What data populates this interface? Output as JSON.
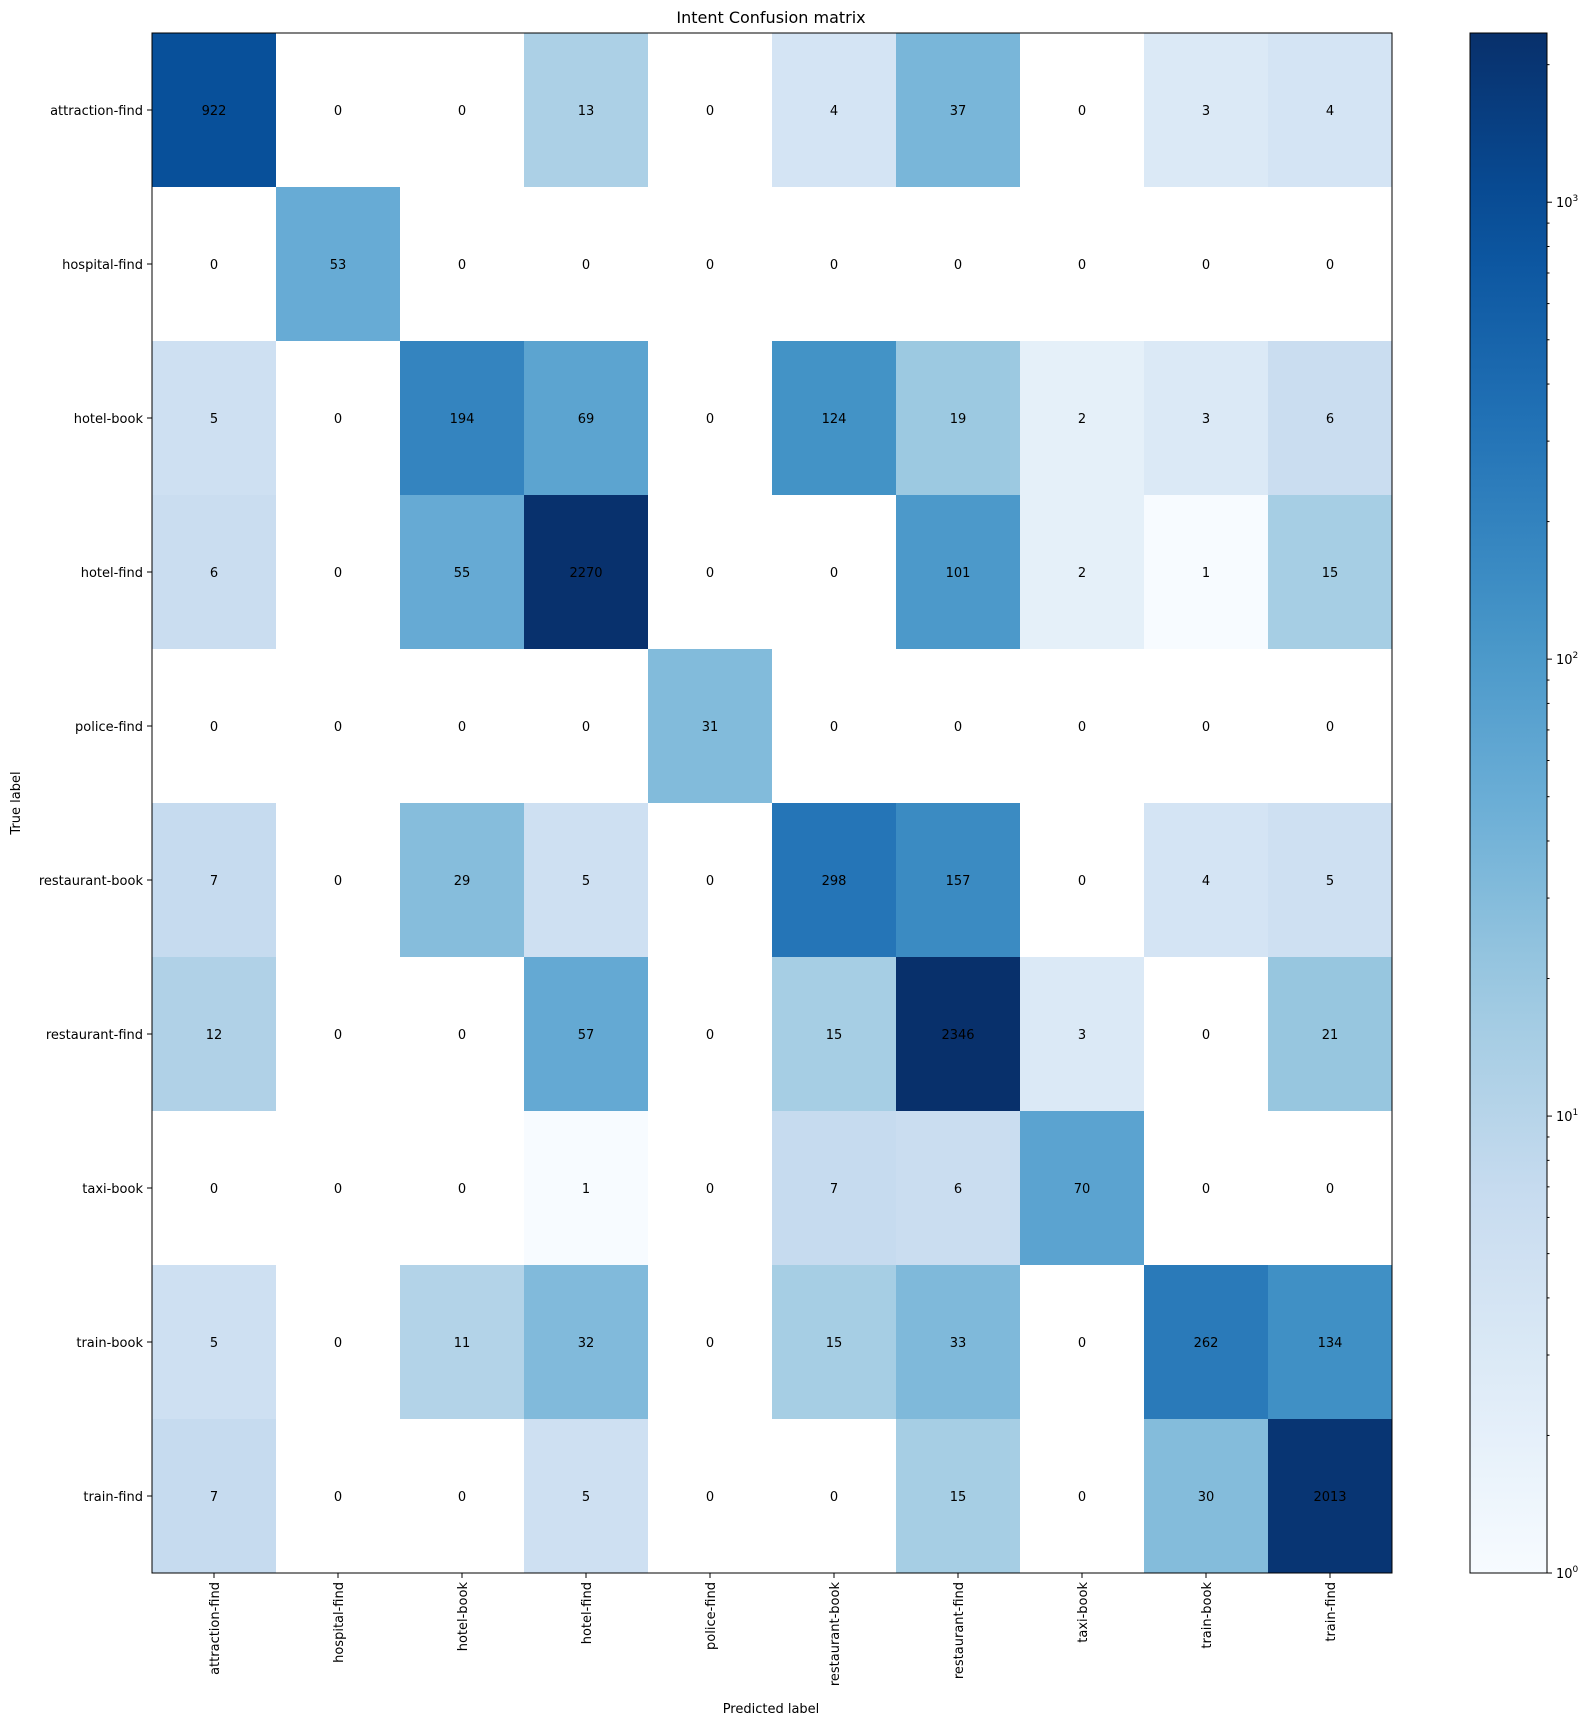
{
  "chart_data": {
    "type": "heatmap",
    "title": "Intent Confusion matrix",
    "xlabel": "Predicted label",
    "ylabel": "True label",
    "x_categories": [
      "attraction-find",
      "hospital-find",
      "hotel-book",
      "hotel-find",
      "police-find",
      "restaurant-book",
      "restaurant-find",
      "taxi-book",
      "train-book",
      "train-find"
    ],
    "y_categories": [
      "attraction-find",
      "hospital-find",
      "hotel-book",
      "hotel-find",
      "police-find",
      "restaurant-book",
      "restaurant-find",
      "taxi-book",
      "train-book",
      "train-find"
    ],
    "values": [
      [
        922,
        0,
        0,
        13,
        0,
        4,
        37,
        0,
        3,
        4
      ],
      [
        0,
        53,
        0,
        0,
        0,
        0,
        0,
        0,
        0,
        0
      ],
      [
        5,
        0,
        194,
        69,
        0,
        124,
        19,
        2,
        3,
        6
      ],
      [
        6,
        0,
        55,
        2270,
        0,
        0,
        101,
        2,
        1,
        15
      ],
      [
        0,
        0,
        0,
        0,
        31,
        0,
        0,
        0,
        0,
        0
      ],
      [
        7,
        0,
        29,
        5,
        0,
        298,
        157,
        0,
        4,
        5
      ],
      [
        12,
        0,
        0,
        57,
        0,
        15,
        2346,
        3,
        0,
        21
      ],
      [
        0,
        0,
        0,
        1,
        0,
        7,
        6,
        70,
        0,
        0
      ],
      [
        5,
        0,
        11,
        32,
        0,
        15,
        33,
        0,
        262,
        134
      ],
      [
        7,
        0,
        0,
        5,
        0,
        0,
        15,
        0,
        30,
        2013
      ]
    ],
    "color_scale": "log",
    "colormap": "Blues",
    "color_range": [
      1,
      2346
    ],
    "zero_color": "#ffffff",
    "colorbar": {
      "ticks": [
        {
          "value": 1,
          "base": "10",
          "exp": "0"
        },
        {
          "value": 10,
          "base": "10",
          "exp": "1"
        },
        {
          "value": 100,
          "base": "10",
          "exp": "2"
        },
        {
          "value": 1000,
          "base": "10",
          "exp": "3"
        }
      ]
    },
    "blues_stops": [
      "#f7fbff",
      "#deebf7",
      "#c6dbef",
      "#9ecae1",
      "#6baed6",
      "#4292c6",
      "#2171b5",
      "#08519c",
      "#08306b"
    ]
  }
}
